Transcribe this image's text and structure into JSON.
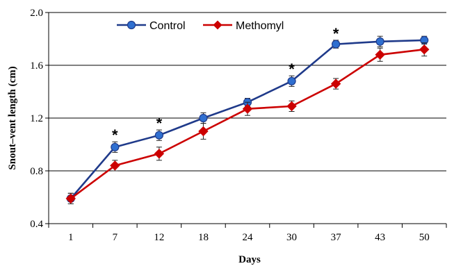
{
  "chart_data": {
    "type": "line",
    "xlabel": "Days",
    "ylabel": "Snout–vent length (cm)",
    "categories": [
      "1",
      "7",
      "12",
      "18",
      "24",
      "30",
      "37",
      "43",
      "50"
    ],
    "ylim": [
      0.4,
      2.0
    ],
    "yticks": [
      "0.4",
      "0.8",
      "1.2",
      "1.6",
      "2.0"
    ],
    "grid": "horizontal",
    "legend": "top-left",
    "series": [
      {
        "name": "Control",
        "color": "#1f3a8a",
        "marker": "circle",
        "values": [
          0.59,
          0.98,
          1.07,
          1.2,
          1.32,
          1.48,
          1.76,
          1.78,
          1.79
        ],
        "errors": [
          0.04,
          0.04,
          0.04,
          0.04,
          0.03,
          0.04,
          0.03,
          0.04,
          0.03
        ]
      },
      {
        "name": "Methomyl",
        "color": "#cc0000",
        "marker": "diamond",
        "values": [
          0.59,
          0.84,
          0.93,
          1.1,
          1.27,
          1.29,
          1.46,
          1.68,
          1.72
        ],
        "errors": [
          0.04,
          0.04,
          0.05,
          0.06,
          0.05,
          0.04,
          0.04,
          0.05,
          0.05
        ]
      }
    ],
    "annotations": [
      {
        "category": "7",
        "text": "*"
      },
      {
        "category": "12",
        "text": "*"
      },
      {
        "category": "30",
        "text": "*"
      },
      {
        "category": "37",
        "text": "*"
      }
    ]
  }
}
